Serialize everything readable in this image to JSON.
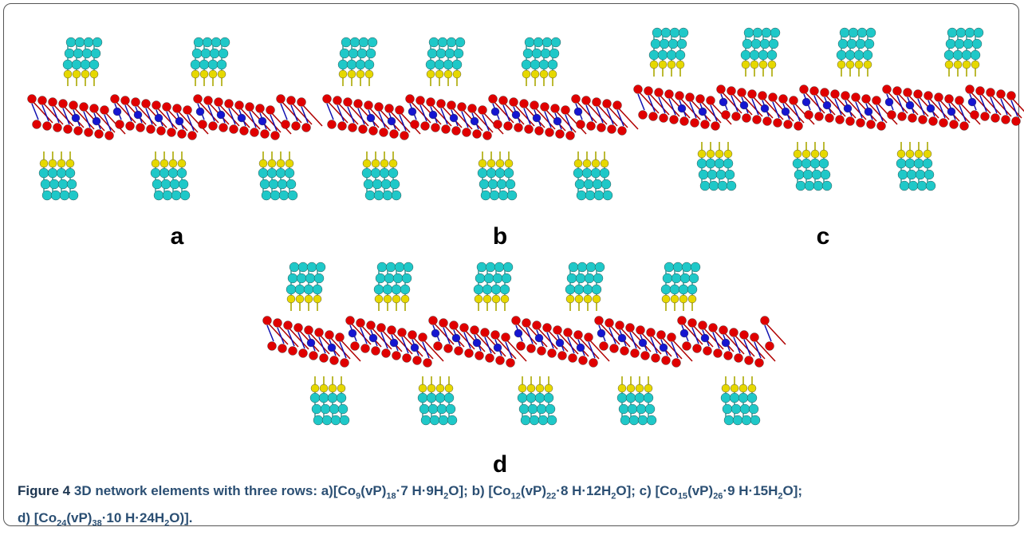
{
  "panels": [
    "a",
    "b",
    "c",
    "d"
  ],
  "caption": {
    "label": "Figure 4",
    "lines": [
      [
        {
          "text": "3D network elements with three rows: a)[Co"
        },
        {
          "sub": "9"
        },
        {
          "text": "(vP)"
        },
        {
          "sub": "18"
        },
        {
          "text": "·7 H·9H"
        },
        {
          "sub": "2"
        },
        {
          "text": "O]; b) [Co"
        },
        {
          "sub": "12"
        },
        {
          "text": "(vP)"
        },
        {
          "sub": "22"
        },
        {
          "text": "·8 H·12H"
        },
        {
          "sub": "2"
        },
        {
          "text": "O]; c) [Co"
        },
        {
          "sub": "15"
        },
        {
          "text": "(vP)"
        },
        {
          "sub": "26"
        },
        {
          "text": "·9 H·15H"
        },
        {
          "sub": "2"
        },
        {
          "text": "O];"
        }
      ],
      [
        {
          "text": "d) [Co"
        },
        {
          "sub": "24"
        },
        {
          "text": "(vP)"
        },
        {
          "sub": "38"
        },
        {
          "text": "·10 H·24H"
        },
        {
          "sub": "2"
        },
        {
          "text": "O)]."
        }
      ]
    ]
  }
}
